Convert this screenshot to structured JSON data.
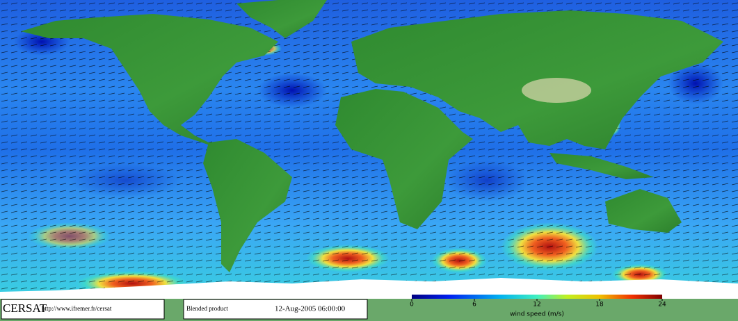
{
  "header": {
    "logo": "CERSAT",
    "url": "http://www.ifremer.fr/cersat"
  },
  "product": {
    "name": "Blended product",
    "date": "12-Aug-2005 06:00:00"
  },
  "colorbar": {
    "label": "wind speed (m/s)",
    "lim": [
      0,
      24
    ],
    "ticks": [
      0,
      6,
      12,
      18,
      24
    ]
  }
}
